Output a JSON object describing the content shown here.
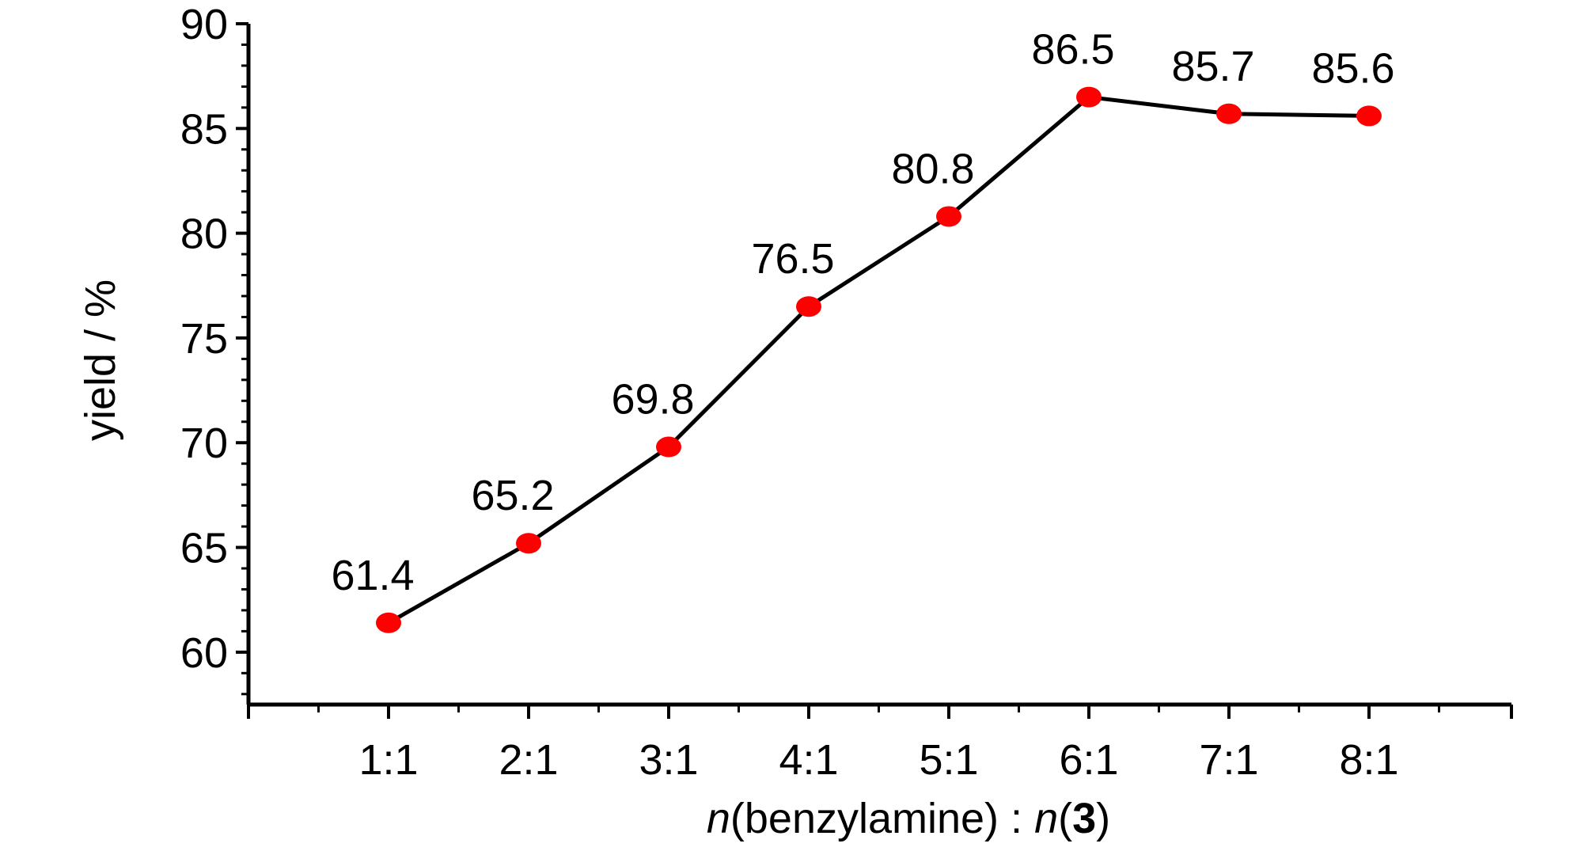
{
  "chart_data": {
    "type": "line",
    "categories": [
      "1:1",
      "2:1",
      "3:1",
      "4:1",
      "5:1",
      "6:1",
      "7:1",
      "8:1"
    ],
    "series": [
      {
        "values": [
          61.4,
          65.2,
          69.8,
          76.5,
          80.8,
          86.5,
          85.7,
          85.6
        ]
      }
    ],
    "data_labels": [
      "61.4",
      "65.2",
      "69.8",
      "76.5",
      "80.8",
      "86.5",
      "85.7",
      "85.6"
    ],
    "y_ticks": [
      60,
      65,
      70,
      75,
      80,
      85,
      90
    ],
    "ylim": [
      57.5,
      90
    ],
    "ylabel": "yield / %",
    "xlabel": {
      "n1": "n",
      "part1": "(benzylamine) : ",
      "n2": "n",
      "open": "(",
      "compound": "3",
      "close": ")"
    },
    "grid": false,
    "legend": "none",
    "colors": {
      "line": "#000000",
      "marker": "#ff0000",
      "axis": "#000000"
    }
  }
}
